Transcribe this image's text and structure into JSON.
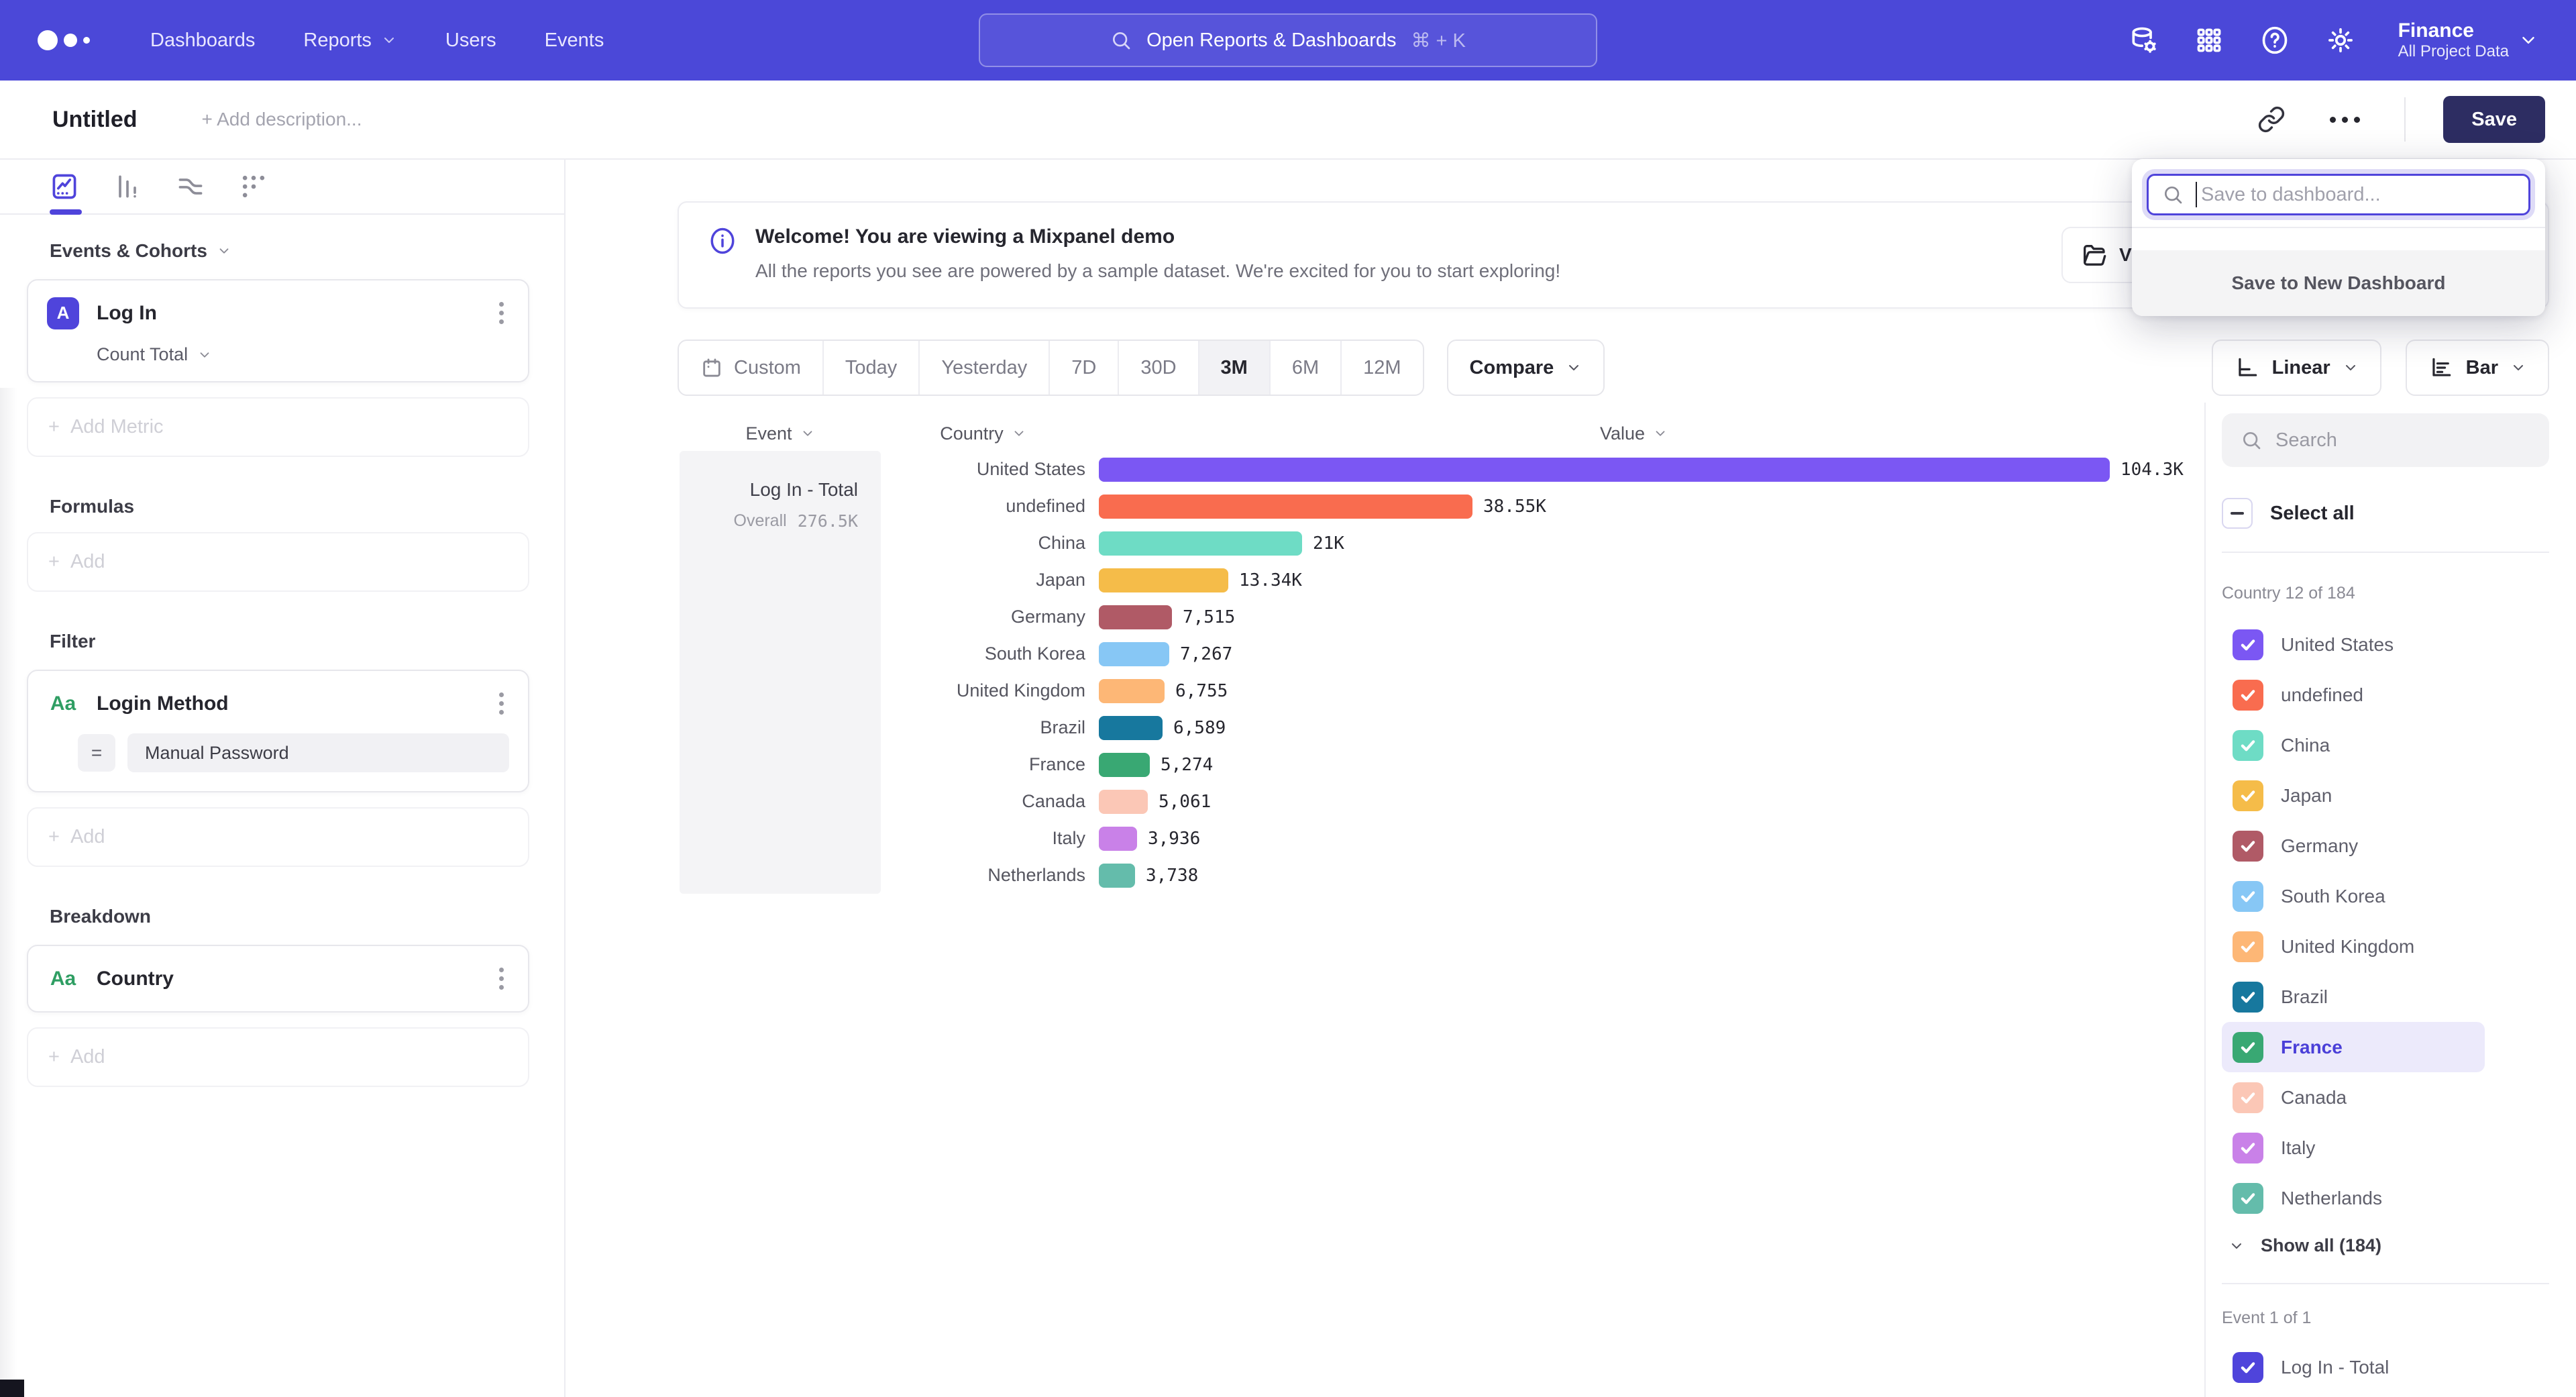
{
  "colors": {
    "nav_bg": "#4b48d8",
    "brand": "#4f44db",
    "save_bg": "#2d2d62",
    "highlight_bg": "#eceafb",
    "highlight_text": "#4a3fd8"
  },
  "nav": {
    "items": [
      "Dashboards",
      "Reports",
      "Users",
      "Events"
    ],
    "search_placeholder": "Open Reports & Dashboards",
    "search_shortcut": "⌘ + K",
    "right_icons": [
      "data-management",
      "apps-grid",
      "help",
      "settings"
    ],
    "project_name": "Finance",
    "project_scope": "All Project Data"
  },
  "report_header": {
    "title": "Untitled",
    "description_placeholder": "+ Add description...",
    "save_label": "Save"
  },
  "save_popup": {
    "placeholder": "Save to dashboard...",
    "new_dashboard_label": "Save to New Dashboard"
  },
  "sidebar": {
    "tabs": [
      "insights",
      "funnels",
      "flows",
      "retention"
    ],
    "active_tab": "insights",
    "events_cohorts": {
      "label": "Events & Cohorts",
      "metric_badge": "A",
      "metric_name": "Log In",
      "metric_aggregation": "Count Total",
      "add_label": "Add Metric"
    },
    "formulas": {
      "label": "Formulas",
      "add_label": "Add"
    },
    "filter": {
      "label": "Filter",
      "property_type": "Aa",
      "property_name": "Login Method",
      "operator": "=",
      "value": "Manual Password",
      "add_label": "Add"
    },
    "breakdown": {
      "label": "Breakdown",
      "property_type": "Aa",
      "property_name": "Country",
      "add_label": "Add"
    }
  },
  "banner": {
    "title": "Welcome! You are viewing a Mixpanel demo",
    "subtitle": "All the reports you see are powered by a sample dataset. We're excited for you to start exploring!",
    "partially_hidden_button_text": "V"
  },
  "toolbar": {
    "ranges": [
      "Custom",
      "Today",
      "Yesterday",
      "7D",
      "30D",
      "3M",
      "6M",
      "12M"
    ],
    "active_range": "3M",
    "compare_label": "Compare",
    "scale_label": "Linear",
    "chart_type_label": "Bar"
  },
  "chart_data": {
    "type": "bar",
    "orientation": "horizontal",
    "series_name": "Log In - Total",
    "overall_label": "Overall",
    "overall_value": "276.5K",
    "columns": {
      "event": "Event",
      "country": "Country",
      "value": "Value"
    },
    "max_value": 104300,
    "rows": [
      {
        "country": "United States",
        "value": 104300,
        "value_label": "104.3K",
        "color": "#7b57f3"
      },
      {
        "country": "undefined",
        "value": 38550,
        "value_label": "38.55K",
        "color": "#f96c4f"
      },
      {
        "country": "China",
        "value": 21000,
        "value_label": "21K",
        "color": "#6edcc5"
      },
      {
        "country": "Japan",
        "value": 13340,
        "value_label": "13.34K",
        "color": "#f5bc49"
      },
      {
        "country": "Germany",
        "value": 7515,
        "value_label": "7,515",
        "color": "#b05a66"
      },
      {
        "country": "South Korea",
        "value": 7267,
        "value_label": "7,267",
        "color": "#87c7f5"
      },
      {
        "country": "United Kingdom",
        "value": 6755,
        "value_label": "6,755",
        "color": "#fdb776"
      },
      {
        "country": "Brazil",
        "value": 6589,
        "value_label": "6,589",
        "color": "#17789e"
      },
      {
        "country": "France",
        "value": 5274,
        "value_label": "5,274",
        "color": "#39a873"
      },
      {
        "country": "Canada",
        "value": 5061,
        "value_label": "5,061",
        "color": "#fbc7b6"
      },
      {
        "country": "Italy",
        "value": 3936,
        "value_label": "3,936",
        "color": "#c981e8"
      },
      {
        "country": "Netherlands",
        "value": 3738,
        "value_label": "3,738",
        "color": "#64bcab"
      }
    ]
  },
  "breakdown_panel": {
    "search_placeholder": "Search",
    "select_all_label": "Select all",
    "group_label": "Country 12 of 184",
    "show_all_label": "Show all (184)",
    "highlighted_item": "France",
    "event_group_label": "Event 1 of 1",
    "event_item_label": "Log In - Total",
    "all_checked": true
  }
}
